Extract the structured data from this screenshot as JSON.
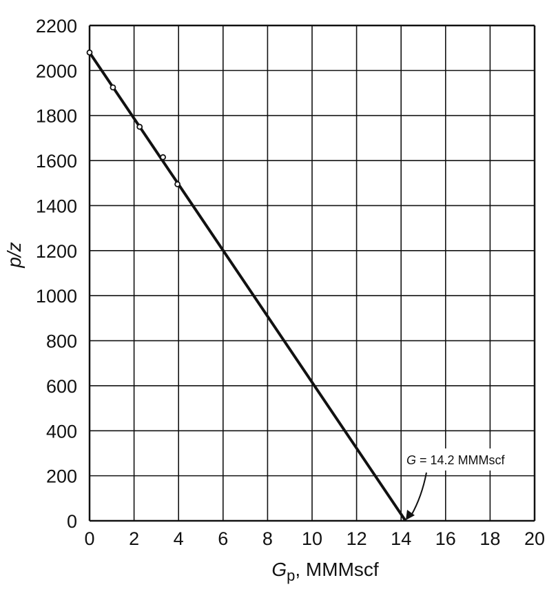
{
  "chart_data": {
    "type": "line",
    "title": "",
    "xlabel_main": "G",
    "xlabel_sub": "p",
    "xlabel_rest": ", MMMscf",
    "ylabel": "p/z",
    "xlim": [
      0,
      20
    ],
    "ylim": [
      0,
      2200
    ],
    "x_ticks": [
      0,
      2,
      4,
      6,
      8,
      10,
      12,
      14,
      16,
      18,
      20
    ],
    "x_tick_labels": [
      "0",
      "2",
      "4",
      "6",
      "8",
      "10",
      "12",
      "14",
      "16",
      "18",
      "20"
    ],
    "y_ticks": [
      0,
      200,
      400,
      600,
      800,
      1000,
      1200,
      1400,
      1600,
      1800,
      2000,
      2200
    ],
    "y_tick_labels": [
      "0",
      "200",
      "400",
      "600",
      "800",
      "1000",
      "1200",
      "1400",
      "1600",
      "1800",
      "2000",
      "2200"
    ],
    "grid": true,
    "series": [
      {
        "kind": "points",
        "marker": "open-circle",
        "x": [
          0,
          1.05,
          2.25,
          3.3,
          3.95
        ],
        "y": [
          2080,
          1925,
          1750,
          1615,
          1495
        ]
      },
      {
        "kind": "line",
        "x": [
          0,
          14.2
        ],
        "y": [
          2080,
          0
        ]
      }
    ],
    "annotation": {
      "text_italic": "G",
      "text_rest": " = 14.2 MMMscf",
      "arrow_to": [
        14.2,
        0
      ]
    },
    "line_color": "#111111",
    "grid_color": "#111111"
  }
}
